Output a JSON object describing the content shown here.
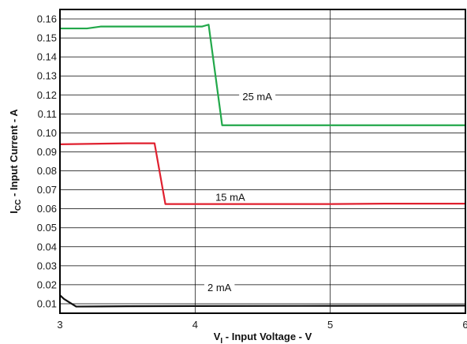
{
  "chart_data": {
    "type": "line",
    "xlabel": {
      "main": "V",
      "sub": "I",
      "rest": " - Input Voltage - V"
    },
    "ylabel": {
      "main": "I",
      "sub": "CC",
      "rest": " - Input Current - A"
    },
    "xlim": [
      3,
      6
    ],
    "ylim": [
      0.005,
      0.165
    ],
    "x_ticks": [
      3,
      4,
      5,
      6
    ],
    "x_tick_labels": [
      "3",
      "4",
      "5",
      "6"
    ],
    "y_ticks": [
      0.01,
      0.02,
      0.03,
      0.04,
      0.05,
      0.06,
      0.07,
      0.08,
      0.09,
      0.1,
      0.11,
      0.12,
      0.13,
      0.14,
      0.15,
      0.16
    ],
    "y_tick_labels": [
      "0.01",
      "0.02",
      "0.03",
      "0.04",
      "0.05",
      "0.06",
      "0.07",
      "0.08",
      "0.09",
      "0.10",
      "0.11",
      "0.12",
      "0.13",
      "0.14",
      "0.15",
      "0.16"
    ],
    "vertical_grid": [
      4,
      5
    ],
    "series": [
      {
        "name": "25 mA",
        "color": "#22a84a",
        "x": [
          3.0,
          3.2,
          3.3,
          3.6,
          4.0,
          4.05,
          4.1,
          4.2,
          4.5,
          5.0,
          6.0
        ],
        "y": [
          0.155,
          0.155,
          0.156,
          0.156,
          0.156,
          0.156,
          0.157,
          0.104,
          0.104,
          0.104,
          0.104
        ],
        "label_at": [
          4.46,
          0.1185
        ]
      },
      {
        "name": "15 mA",
        "color": "#e0202f",
        "x": [
          3.0,
          3.2,
          3.5,
          3.7,
          3.78,
          3.85,
          4.2,
          5.0,
          5.4,
          6.0
        ],
        "y": [
          0.094,
          0.0942,
          0.0945,
          0.0945,
          0.0625,
          0.0625,
          0.0625,
          0.0625,
          0.0627,
          0.0627
        ],
        "label_at": [
          4.26,
          0.0655
        ]
      },
      {
        "name": "2 mA",
        "color": "#111111",
        "x": [
          3.0,
          3.03,
          3.12,
          3.5,
          4.0,
          5.0,
          6.0
        ],
        "y": [
          0.0145,
          0.0125,
          0.0085,
          0.0087,
          0.0088,
          0.0089,
          0.009
        ],
        "label_at": [
          4.18,
          0.0178
        ]
      }
    ]
  }
}
